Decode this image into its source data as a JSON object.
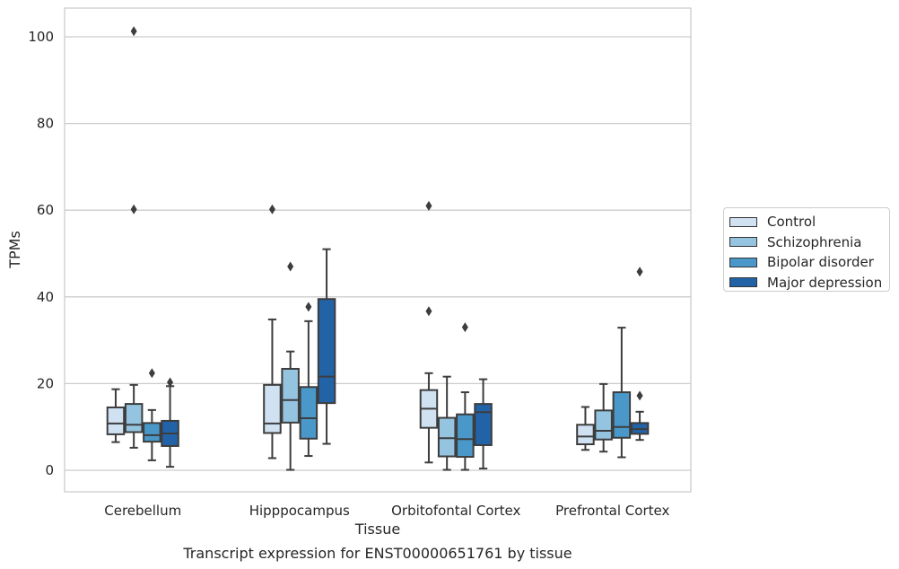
{
  "chart_data": {
    "type": "box",
    "title": "",
    "xlabel": "Tissue",
    "ylabel": "TPMs",
    "caption": "Transcript expression for ENST00000651761 by tissue",
    "ylim": [
      -5,
      106
    ],
    "yticks": [
      0,
      20,
      40,
      60,
      80,
      100
    ],
    "grid": true,
    "legend_position": "right",
    "categories": [
      "Cerebellum",
      "Hipppocampus",
      "Orbitofontal Cortex",
      "Prefrontal Cortex"
    ],
    "series": [
      {
        "name": "Control",
        "color": "#d0e1f2",
        "boxes": [
          {
            "whisker_low": 6.5,
            "q1": 8.3,
            "median": 10.8,
            "q3": 14.5,
            "whisker_high": 18.7,
            "outliers": []
          },
          {
            "whisker_low": 2.8,
            "q1": 8.6,
            "median": 10.8,
            "q3": 19.7,
            "whisker_high": 34.8,
            "outliers": [
              60.2
            ]
          },
          {
            "whisker_low": 1.8,
            "q1": 9.8,
            "median": 14.2,
            "q3": 18.5,
            "whisker_high": 22.4,
            "outliers": [
              36.7,
              61.0
            ]
          },
          {
            "whisker_low": 4.7,
            "q1": 6.0,
            "median": 7.8,
            "q3": 10.5,
            "whisker_high": 14.6,
            "outliers": []
          }
        ]
      },
      {
        "name": "Schizophrenia",
        "color": "#94c4df",
        "boxes": [
          {
            "whisker_low": 5.2,
            "q1": 8.8,
            "median": 10.5,
            "q3": 15.3,
            "whisker_high": 19.7,
            "outliers": [
              60.2,
              101.3
            ]
          },
          {
            "whisker_low": 0.1,
            "q1": 11.0,
            "median": 16.2,
            "q3": 23.4,
            "whisker_high": 27.4,
            "outliers": [
              47.0
            ]
          },
          {
            "whisker_low": 0.1,
            "q1": 3.2,
            "median": 7.4,
            "q3": 12.1,
            "whisker_high": 21.6,
            "outliers": []
          },
          {
            "whisker_low": 4.3,
            "q1": 7.1,
            "median": 9.1,
            "q3": 13.8,
            "whisker_high": 19.9,
            "outliers": []
          }
        ]
      },
      {
        "name": "Bipolar disorder",
        "color": "#4a98c9",
        "boxes": [
          {
            "whisker_low": 2.3,
            "q1": 6.6,
            "median": 8.1,
            "q3": 10.9,
            "whisker_high": 13.9,
            "outliers": [
              22.4
            ]
          },
          {
            "whisker_low": 3.3,
            "q1": 7.3,
            "median": 12.0,
            "q3": 19.2,
            "whisker_high": 34.4,
            "outliers": [
              37.7
            ]
          },
          {
            "whisker_low": 0.1,
            "q1": 3.1,
            "median": 7.2,
            "q3": 12.9,
            "whisker_high": 18.0,
            "outliers": [
              33.0
            ]
          },
          {
            "whisker_low": 3.0,
            "q1": 7.5,
            "median": 10.0,
            "q3": 18.0,
            "whisker_high": 32.9,
            "outliers": []
          }
        ]
      },
      {
        "name": "Major depression",
        "color": "#2263a8",
        "boxes": [
          {
            "whisker_low": 0.8,
            "q1": 5.6,
            "median": 8.5,
            "q3": 11.4,
            "whisker_high": 19.4,
            "outliers": [
              20.3
            ]
          },
          {
            "whisker_low": 6.1,
            "q1": 15.5,
            "median": 21.6,
            "q3": 39.5,
            "whisker_high": 51.0,
            "outliers": []
          },
          {
            "whisker_low": 0.4,
            "q1": 5.8,
            "median": 13.4,
            "q3": 15.3,
            "whisker_high": 21.0,
            "outliers": []
          },
          {
            "whisker_low": 7.0,
            "q1": 8.4,
            "median": 9.5,
            "q3": 10.9,
            "whisker_high": 13.5,
            "outliers": [
              17.2,
              45.8
            ]
          }
        ]
      }
    ]
  }
}
